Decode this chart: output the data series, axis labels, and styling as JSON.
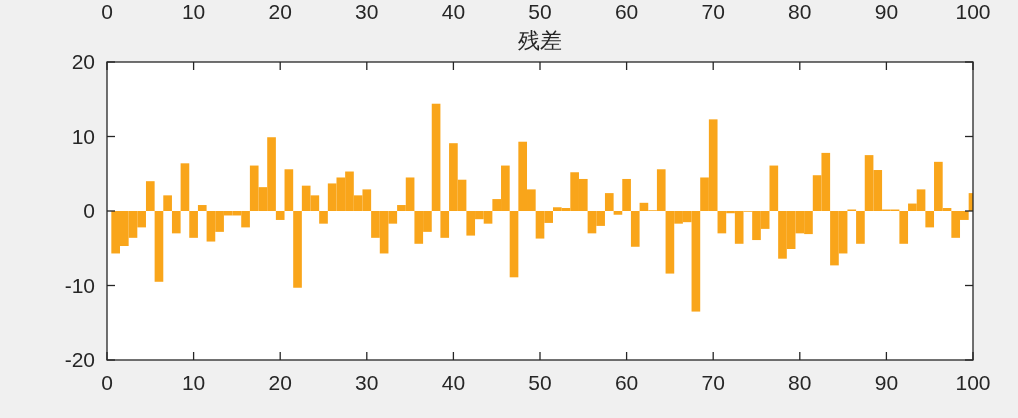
{
  "chart_data": {
    "type": "bar",
    "title": "残差",
    "x": [
      1,
      2,
      3,
      4,
      5,
      6,
      7,
      8,
      9,
      10,
      11,
      12,
      13,
      14,
      15,
      16,
      17,
      18,
      19,
      20,
      21,
      22,
      23,
      24,
      25,
      26,
      27,
      28,
      29,
      30,
      31,
      32,
      33,
      34,
      35,
      36,
      37,
      38,
      39,
      40,
      41,
      42,
      43,
      44,
      45,
      46,
      47,
      48,
      49,
      50,
      51,
      52,
      53,
      54,
      55,
      56,
      57,
      58,
      59,
      60,
      61,
      62,
      63,
      64,
      65,
      66,
      67,
      68,
      69,
      70,
      71,
      72,
      73,
      74,
      75,
      76,
      77,
      78,
      79,
      80,
      81,
      82,
      83,
      84,
      85,
      86,
      87,
      88,
      89,
      90,
      91,
      92,
      93,
      94,
      95,
      96,
      97,
      98,
      99,
      100
    ],
    "values": [
      -5.7,
      -4.7,
      -3.6,
      -2.2,
      4.0,
      -9.5,
      2.1,
      -3.0,
      6.4,
      -3.6,
      0.8,
      -4.1,
      -2.8,
      -0.6,
      -0.6,
      -2.2,
      6.1,
      3.2,
      9.9,
      -1.2,
      5.6,
      -10.3,
      3.4,
      2.1,
      -1.7,
      3.7,
      4.5,
      5.3,
      2.1,
      2.9,
      -3.6,
      -5.7,
      -1.7,
      0.8,
      4.5,
      -4.4,
      -2.8,
      14.4,
      -3.6,
      9.1,
      4.2,
      -3.3,
      -1.1,
      -1.7,
      1.6,
      6.1,
      -8.9,
      9.3,
      2.9,
      -3.7,
      -1.6,
      0.5,
      0.4,
      5.2,
      4.3,
      -3.0,
      -2.0,
      2.4,
      -0.5,
      4.3,
      -4.8,
      1.1,
      0.1,
      5.6,
      -8.4,
      -1.7,
      -1.5,
      -13.5,
      4.5,
      12.3,
      -3.0,
      -0.3,
      -4.4,
      -0.1,
      -3.9,
      -2.4,
      6.1,
      -6.4,
      -5.1,
      -3.0,
      -3.1,
      4.8,
      7.8,
      -7.3,
      -5.7,
      0.2,
      -4.4,
      7.5,
      5.5,
      0.2,
      0.2,
      -4.4,
      1.0,
      2.9,
      -2.2,
      6.6,
      0.4,
      -3.6,
      -1.2,
      2.4
    ],
    "color": "#f9a51a",
    "xlim": [
      0,
      100
    ],
    "xticks": [
      0,
      10,
      20,
      30,
      40,
      50,
      60,
      70,
      80,
      90,
      100
    ],
    "ylim": [
      -20,
      20
    ],
    "yticks": [
      -20,
      -10,
      0,
      10,
      20
    ],
    "x2lim": [
      0,
      100
    ],
    "x2ticks": [
      0,
      10,
      20,
      30,
      40,
      50,
      60,
      70,
      80,
      90,
      100
    ]
  }
}
